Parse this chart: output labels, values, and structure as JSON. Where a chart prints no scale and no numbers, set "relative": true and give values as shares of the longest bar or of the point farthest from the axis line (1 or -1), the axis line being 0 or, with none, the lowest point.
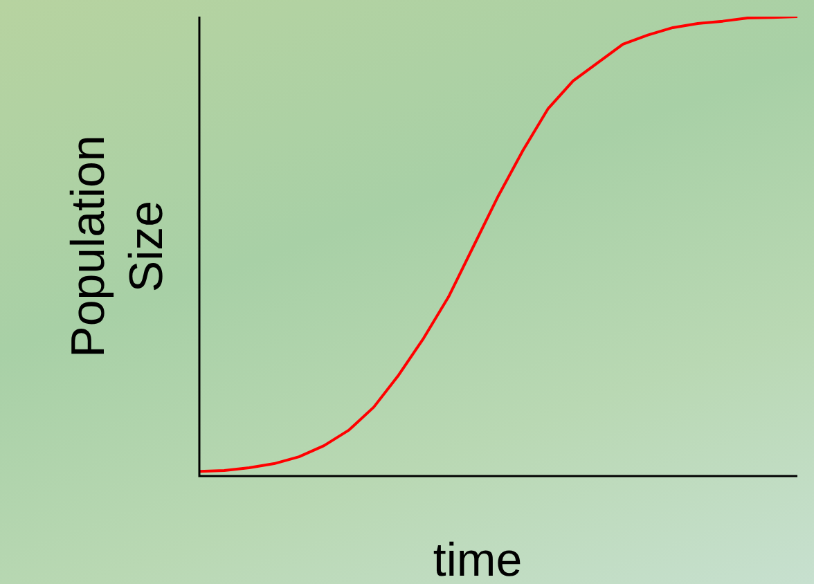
{
  "chart_data": {
    "type": "line",
    "xlabel": "time",
    "ylabel": "Population Size",
    "relative": true,
    "tick_labels": false,
    "grid": false,
    "legend": false,
    "marker": "none",
    "categories": [
      null,
      null,
      null,
      null,
      null,
      null,
      null,
      null,
      null,
      null,
      null,
      null,
      null,
      null,
      null,
      null,
      null,
      null,
      null,
      null,
      null,
      null,
      null,
      null,
      null
    ],
    "series": [
      {
        "color": "#ff0000",
        "values": [
          0.01,
          0.012,
          0.018,
          0.027,
          0.042,
          0.066,
          0.1,
          0.15,
          0.22,
          0.3,
          0.39,
          0.5,
          0.61,
          0.71,
          0.8,
          0.86,
          0.9,
          0.94,
          0.96,
          0.976,
          0.985,
          0.99,
          0.997,
          0.998,
          1
        ]
      }
    ]
  }
}
